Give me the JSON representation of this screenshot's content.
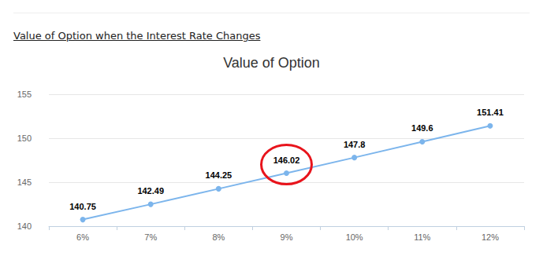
{
  "heading": "Value of Option when the Interest Rate Changes",
  "chart_data": {
    "type": "line",
    "title": "Value of Option",
    "categories": [
      "6%",
      "7%",
      "8%",
      "9%",
      "10%",
      "11%",
      "12%"
    ],
    "values": [
      140.75,
      142.49,
      144.25,
      146.02,
      147.8,
      149.6,
      151.41
    ],
    "color": "#7cb5ec",
    "ylim": [
      140,
      155
    ],
    "yticks": [
      140,
      145,
      150,
      155
    ],
    "grid": true,
    "data_labels": true,
    "marker": "circle"
  }
}
